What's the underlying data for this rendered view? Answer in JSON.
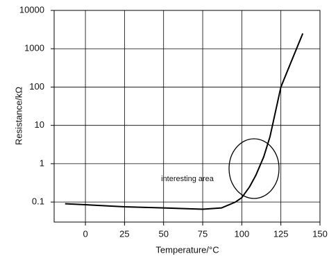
{
  "chart_data": {
    "type": "line",
    "x_label": "Temperature/°C",
    "y_label": "Resistance/kΩ",
    "annotation": "interesting area",
    "x": [
      -13,
      0,
      25,
      50,
      75,
      87,
      96,
      100,
      105,
      109,
      114,
      118,
      125,
      131,
      139
    ],
    "series": [
      {
        "color": "#000000",
        "values": [
          0.09,
          0.085,
          0.075,
          0.07,
          0.065,
          0.07,
          0.1,
          0.13,
          0.25,
          0.5,
          1.5,
          5,
          100,
          400,
          2500
        ]
      }
    ],
    "xlim": [
      -20,
      150
    ],
    "xticks": [
      0,
      25,
      50,
      75,
      100,
      125,
      150
    ],
    "ylim": [
      0.03,
      10000
    ],
    "yticks": [
      0.1,
      1,
      10,
      100,
      1000,
      10000
    ],
    "log_y": true,
    "grid": true
  }
}
